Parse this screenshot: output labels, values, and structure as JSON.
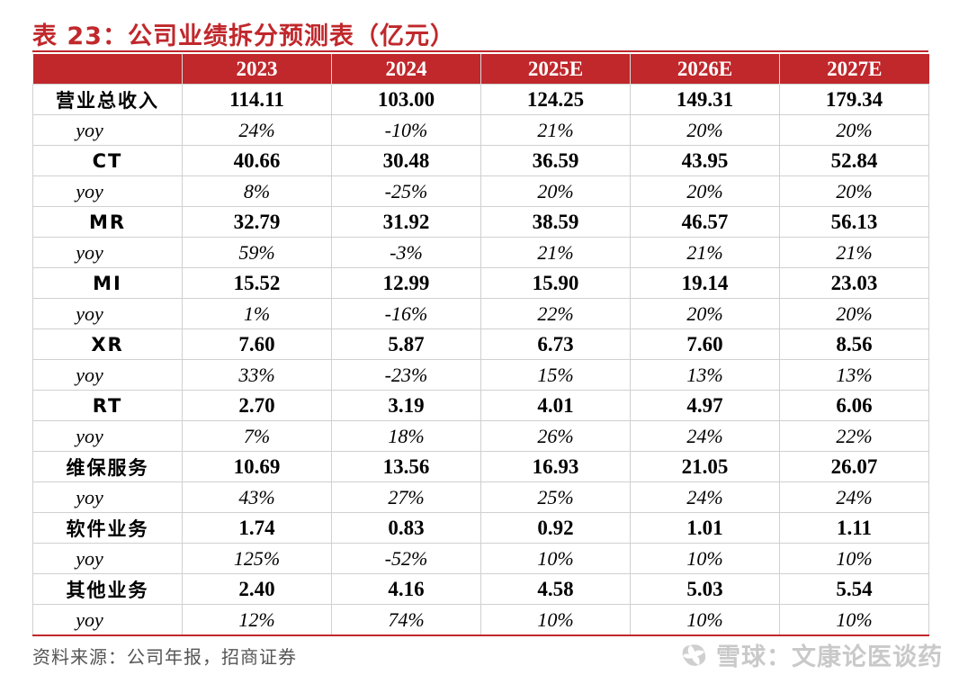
{
  "title": "表 23：公司业绩拆分预测表（亿元）",
  "table": {
    "columns": [
      "",
      "2023",
      "2024",
      "2025E",
      "2026E",
      "2027E"
    ],
    "rows": [
      {
        "kind": "main",
        "label": "营业总收入",
        "values": [
          "114.11",
          "103.00",
          "124.25",
          "149.31",
          "179.34"
        ]
      },
      {
        "kind": "yoy",
        "label": "yoy",
        "values": [
          "24%",
          "-10%",
          "21%",
          "20%",
          "20%"
        ]
      },
      {
        "kind": "main",
        "label": "CT",
        "values": [
          "40.66",
          "30.48",
          "36.59",
          "43.95",
          "52.84"
        ]
      },
      {
        "kind": "yoy",
        "label": "yoy",
        "values": [
          "8%",
          "-25%",
          "20%",
          "20%",
          "20%"
        ]
      },
      {
        "kind": "main",
        "label": "MR",
        "values": [
          "32.79",
          "31.92",
          "38.59",
          "46.57",
          "56.13"
        ]
      },
      {
        "kind": "yoy",
        "label": "yoy",
        "values": [
          "59%",
          "-3%",
          "21%",
          "21%",
          "21%"
        ]
      },
      {
        "kind": "main",
        "label": "MI",
        "values": [
          "15.52",
          "12.99",
          "15.90",
          "19.14",
          "23.03"
        ]
      },
      {
        "kind": "yoy",
        "label": "yoy",
        "values": [
          "1%",
          "-16%",
          "22%",
          "20%",
          "20%"
        ]
      },
      {
        "kind": "main",
        "label": "XR",
        "values": [
          "7.60",
          "5.87",
          "6.73",
          "7.60",
          "8.56"
        ]
      },
      {
        "kind": "yoy",
        "label": "yoy",
        "values": [
          "33%",
          "-23%",
          "15%",
          "13%",
          "13%"
        ]
      },
      {
        "kind": "main",
        "label": "RT",
        "values": [
          "2.70",
          "3.19",
          "4.01",
          "4.97",
          "6.06"
        ]
      },
      {
        "kind": "yoy",
        "label": "yoy",
        "values": [
          "7%",
          "18%",
          "26%",
          "24%",
          "22%"
        ]
      },
      {
        "kind": "main",
        "label": "维保服务",
        "values": [
          "10.69",
          "13.56",
          "16.93",
          "21.05",
          "26.07"
        ]
      },
      {
        "kind": "yoy",
        "label": "yoy",
        "values": [
          "43%",
          "27%",
          "25%",
          "24%",
          "24%"
        ]
      },
      {
        "kind": "main",
        "label": "软件业务",
        "values": [
          "1.74",
          "0.83",
          "0.92",
          "1.01",
          "1.11"
        ]
      },
      {
        "kind": "yoy",
        "label": "yoy",
        "values": [
          "125%",
          "-52%",
          "10%",
          "10%",
          "10%"
        ]
      },
      {
        "kind": "main",
        "label": "其他业务",
        "values": [
          "2.40",
          "4.16",
          "4.58",
          "5.03",
          "5.54"
        ]
      },
      {
        "kind": "yoy",
        "label": "yoy",
        "values": [
          "12%",
          "74%",
          "10%",
          "10%",
          "10%"
        ]
      }
    ]
  },
  "source": "资料来源：公司年报，招商证券",
  "watermark": {
    "text": "雪球：文康论医谈药",
    "icon": "snowball-logo-icon",
    "color": "#c9c9c9"
  },
  "colors": {
    "accent": "#c0282c",
    "header_text": "#ffffff"
  }
}
